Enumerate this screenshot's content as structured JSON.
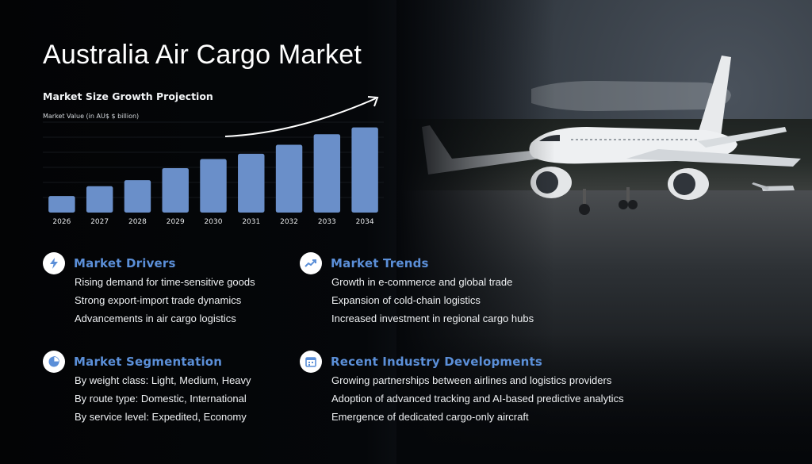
{
  "title": "Australia Air Cargo Market",
  "chart_data": {
    "type": "bar",
    "title": "Market Size Growth Projection",
    "ylabel": "Market Value (in AU$ $ billion)",
    "xlabel": "",
    "categories": [
      "2026",
      "2027",
      "2028",
      "2029",
      "2030",
      "2031",
      "2032",
      "2033",
      "2034"
    ],
    "values": [
      2.2,
      3.5,
      4.3,
      5.9,
      7.1,
      7.8,
      9.0,
      10.4,
      11.3
    ],
    "ylim": [
      0,
      12
    ],
    "grid": true,
    "trend_arrow": true,
    "bar_color": "#6a8fc9"
  },
  "sections": {
    "drivers": {
      "title": "Market Drivers",
      "icon": "lightning-icon",
      "items": [
        "Rising demand for time-sensitive goods",
        "Strong export-import trade dynamics",
        "Advancements in air cargo logistics"
      ]
    },
    "trends": {
      "title": "Market Trends",
      "icon": "trend-line-icon",
      "items": [
        "Growth in e-commerce and global trade",
        "Expansion of cold-chain logistics",
        "Increased investment in regional cargo hubs"
      ]
    },
    "segmentation": {
      "title": "Market Segmentation",
      "icon": "pie-chart-icon",
      "items": [
        "By weight class: Light, Medium, Heavy",
        "By route type: Domestic, International",
        "By service level: Expedited, Economy"
      ]
    },
    "developments": {
      "title": "Recent Industry Developments",
      "icon": "calendar-icon",
      "items": [
        "Growing partnerships between airlines and logistics providers",
        "Adoption of advanced tracking and AI-based predictive analytics",
        "Emergence of dedicated cargo-only aircraft"
      ]
    }
  },
  "colors": {
    "accent": "#5b8fd8",
    "bar": "#6a8fc9",
    "background": "#050608"
  }
}
